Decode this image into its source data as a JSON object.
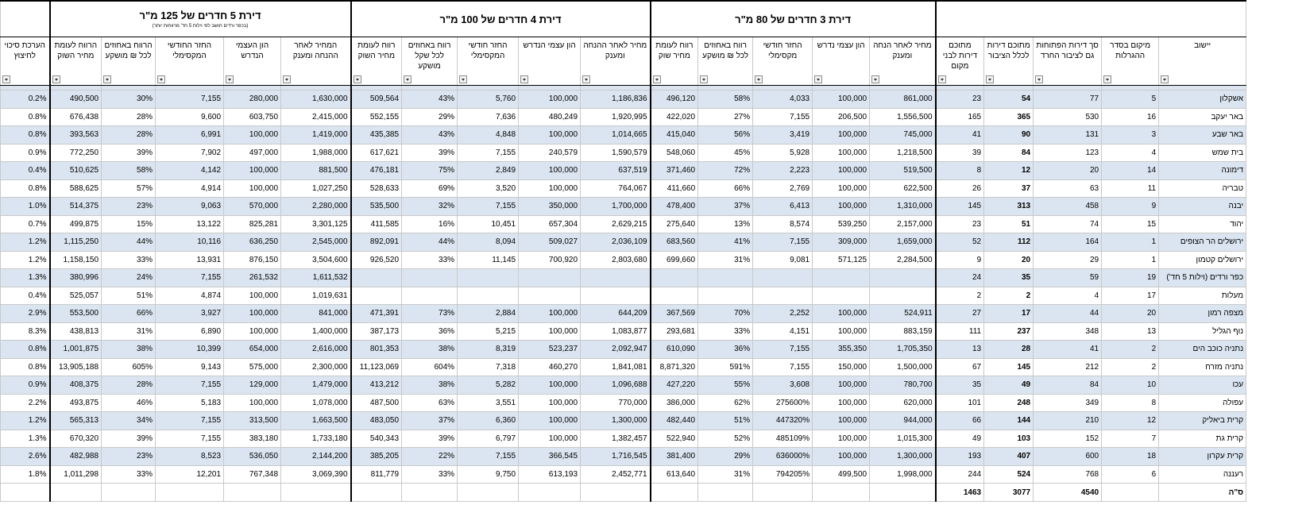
{
  "table": {
    "group_headers": [
      "דירת 3 חדרים של 80 מ\"ר",
      "דירת 4 חדרים של 100 מ\"ר",
      "דירת 5 חדרים של 125 מ\"ר"
    ],
    "group_note": "(בכפר ורדים חושב לפי וילות 5 חד' מרווחות יותר)",
    "columns": [
      "יישוב",
      "מיקום בסדר ההגרלות",
      "סך דירות הפתוחות גם לציבור החרד",
      "מתוכם דירות לכלל הציבור",
      "מתוכם דירות לבני מקום",
      "מחיר לאחר הנחה ומענק",
      "הון עצמי נדרש",
      "החזר חודשי מקסימלי",
      "רווח באחוזים לכל ₪ מושקע",
      "רווח לעומת מחיר שוק",
      "מחיר לאחר ההנחה ומענק",
      "הון עצמי הנדרש",
      "החזר חודשי המקסימלי",
      "רווח באחוזים לכל שקל מושקע",
      "רווח לעומת מחיר השוק",
      "המחיר לאחר ההנחה ומענק",
      "הון העצמי הנדרש",
      "החזר החודשי המקסימלי",
      "הרווח באחוזים לכל ₪ מושקע",
      "הרווח לעומת מחיר השוק",
      "הערכת סיכוי לחיצוץ"
    ],
    "rows": [
      [
        "אשקלון",
        "5",
        "77",
        "54",
        "23",
        "861,000",
        "100,000",
        "4,033",
        "58%",
        "496,120",
        "1,186,836",
        "100,000",
        "5,760",
        "43%",
        "509,564",
        "1,630,000",
        "280,000",
        "7,155",
        "30%",
        "490,500",
        "0.2%"
      ],
      [
        "באר יעקב",
        "16",
        "530",
        "365",
        "165",
        "1,556,500",
        "206,500",
        "7,155",
        "27%",
        "422,020",
        "1,920,995",
        "480,249",
        "7,636",
        "29%",
        "552,155",
        "2,415,000",
        "603,750",
        "9,600",
        "28%",
        "676,438",
        "0.8%"
      ],
      [
        "באר שבע",
        "3",
        "131",
        "90",
        "41",
        "745,000",
        "100,000",
        "3,419",
        "56%",
        "415,040",
        "1,014,665",
        "100,000",
        "4,848",
        "43%",
        "435,385",
        "1,419,000",
        "100,000",
        "6,991",
        "28%",
        "393,563",
        "0.8%"
      ],
      [
        "בית שמש",
        "4",
        "123",
        "84",
        "39",
        "1,218,500",
        "100,000",
        "5,928",
        "45%",
        "548,060",
        "1,590,579",
        "240,579",
        "7,155",
        "39%",
        "617,621",
        "1,988,000",
        "497,000",
        "7,902",
        "39%",
        "772,250",
        "0.9%"
      ],
      [
        "דימונה",
        "14",
        "20",
        "12",
        "8",
        "519,500",
        "100,000",
        "2,223",
        "72%",
        "371,460",
        "637,519",
        "100,000",
        "2,849",
        "75%",
        "476,181",
        "881,500",
        "100,000",
        "4,142",
        "58%",
        "510,625",
        "0.4%"
      ],
      [
        "טבריה",
        "11",
        "63",
        "37",
        "26",
        "622,500",
        "100,000",
        "2,769",
        "66%",
        "411,660",
        "764,067",
        "100,000",
        "3,520",
        "69%",
        "528,633",
        "1,027,250",
        "100,000",
        "4,914",
        "57%",
        "588,625",
        "0.8%"
      ],
      [
        "יבנה",
        "9",
        "458",
        "313",
        "145",
        "1,310,000",
        "100,000",
        "6,413",
        "37%",
        "478,400",
        "1,700,000",
        "350,000",
        "7,155",
        "32%",
        "535,500",
        "2,280,000",
        "570,000",
        "9,063",
        "23%",
        "514,375",
        "1.0%"
      ],
      [
        "יהוד",
        "15",
        "74",
        "51",
        "23",
        "2,157,000",
        "539,250",
        "8,574",
        "13%",
        "275,640",
        "2,629,215",
        "657,304",
        "10,451",
        "16%",
        "411,585",
        "3,301,125",
        "825,281",
        "13,122",
        "15%",
        "499,875",
        "0.7%"
      ],
      [
        "ירושלים הר הצופים",
        "1",
        "164",
        "112",
        "52",
        "1,659,000",
        "309,000",
        "7,155",
        "41%",
        "683,560",
        "2,036,109",
        "509,027",
        "8,094",
        "44%",
        "892,091",
        "2,545,000",
        "636,250",
        "10,116",
        "44%",
        "1,115,250",
        "1.2%"
      ],
      [
        "ירושלים קטמון",
        "1",
        "29",
        "20",
        "9",
        "2,284,500",
        "571,125",
        "9,081",
        "31%",
        "699,660",
        "2,803,680",
        "700,920",
        "11,145",
        "33%",
        "926,520",
        "3,504,600",
        "876,150",
        "13,931",
        "33%",
        "1,158,150",
        "1.2%"
      ],
      [
        "כפר ורדים (וילות 5 חד')",
        "19",
        "59",
        "35",
        "24",
        null,
        null,
        null,
        null,
        null,
        null,
        null,
        null,
        null,
        null,
        "1,611,532",
        "261,532",
        "7,155",
        "24%",
        "380,996",
        "1.3%"
      ],
      [
        "מעלות",
        "17",
        "4",
        "2",
        "2",
        null,
        null,
        null,
        null,
        null,
        null,
        null,
        null,
        null,
        null,
        "1,019,631",
        "100,000",
        "4,874",
        "51%",
        "525,057",
        "0.4%"
      ],
      [
        "מצפה רמון",
        "20",
        "44",
        "17",
        "27",
        "524,911",
        "100,000",
        "2,252",
        "70%",
        "367,569",
        "644,209",
        "100,000",
        "2,884",
        "73%",
        "471,391",
        "841,000",
        "100,000",
        "3,927",
        "66%",
        "553,500",
        "2.9%"
      ],
      [
        "נוף הגליל",
        "13",
        "348",
        "237",
        "111",
        "883,159",
        "100,000",
        "4,151",
        "33%",
        "293,681",
        "1,083,877",
        "100,000",
        "5,215",
        "36%",
        "387,173",
        "1,400,000",
        "100,000",
        "6,890",
        "31%",
        "438,813",
        "8.3%"
      ],
      [
        "נתניה כוכב הים",
        "2",
        "41",
        "28",
        "13",
        "1,705,350",
        "355,350",
        "7,155",
        "36%",
        "610,090",
        "2,092,947",
        "523,237",
        "8,319",
        "38%",
        "801,353",
        "2,616,000",
        "654,000",
        "10,399",
        "38%",
        "1,001,875",
        "0.8%"
      ],
      [
        "נתניה מזרח",
        "2",
        "212",
        "145",
        "67",
        "1,500,000",
        "150,000",
        "7,155",
        "591%",
        "8,871,320",
        "1,841,081",
        "460,270",
        "7,318",
        "604%",
        "11,123,069",
        "2,300,000",
        "575,000",
        "9,143",
        "605%",
        "13,905,188",
        "0.8%"
      ],
      [
        "עכו",
        "10",
        "84",
        "49",
        "35",
        "780,700",
        "100,000",
        "3,608",
        "55%",
        "427,220",
        "1,096,688",
        "100,000",
        "5,282",
        "38%",
        "413,212",
        "1,479,000",
        "129,000",
        "7,155",
        "28%",
        "408,375",
        "0.9%"
      ],
      [
        "עפולה",
        "8",
        "349",
        "248",
        "101",
        "620,000",
        "100,000",
        "275600%",
        "62%",
        "386,000",
        "770,000",
        "100,000",
        "3,551",
        "63%",
        "487,500",
        "1,078,000",
        "100,000",
        "5,183",
        "46%",
        "493,875",
        "2.2%"
      ],
      [
        "קרית ביאליק",
        "12",
        "210",
        "144",
        "66",
        "944,000",
        "100,000",
        "447320%",
        "51%",
        "482,440",
        "1,300,000",
        "100,000",
        "6,360",
        "37%",
        "483,050",
        "1,663,500",
        "313,500",
        "7,155",
        "34%",
        "565,313",
        "1.2%"
      ],
      [
        "קרית גת",
        "7",
        "152",
        "103",
        "49",
        "1,015,300",
        "100,000",
        "485109%",
        "52%",
        "522,940",
        "1,382,457",
        "100,000",
        "6,797",
        "39%",
        "540,343",
        "1,733,180",
        "383,180",
        "7,155",
        "39%",
        "670,320",
        "1.3%"
      ],
      [
        "קרית עקרון",
        "18",
        "600",
        "407",
        "193",
        "1,300,000",
        "100,000",
        "636000%",
        "29%",
        "381,400",
        "1,716,545",
        "366,545",
        "7,155",
        "22%",
        "385,205",
        "2,144,200",
        "536,050",
        "8,523",
        "23%",
        "482,988",
        "2.6%"
      ],
      [
        "רעננה",
        "6",
        "768",
        "524",
        "244",
        "1,998,000",
        "499,500",
        "794205%",
        "31%",
        "613,640",
        "2,452,771",
        "613,193",
        "9,750",
        "33%",
        "811,779",
        "3,069,390",
        "767,348",
        "12,201",
        "33%",
        "1,011,298",
        "1.8%"
      ]
    ],
    "total": {
      "label": "ס\"ה",
      "values": [
        "4540",
        "3077",
        "1463"
      ]
    }
  }
}
